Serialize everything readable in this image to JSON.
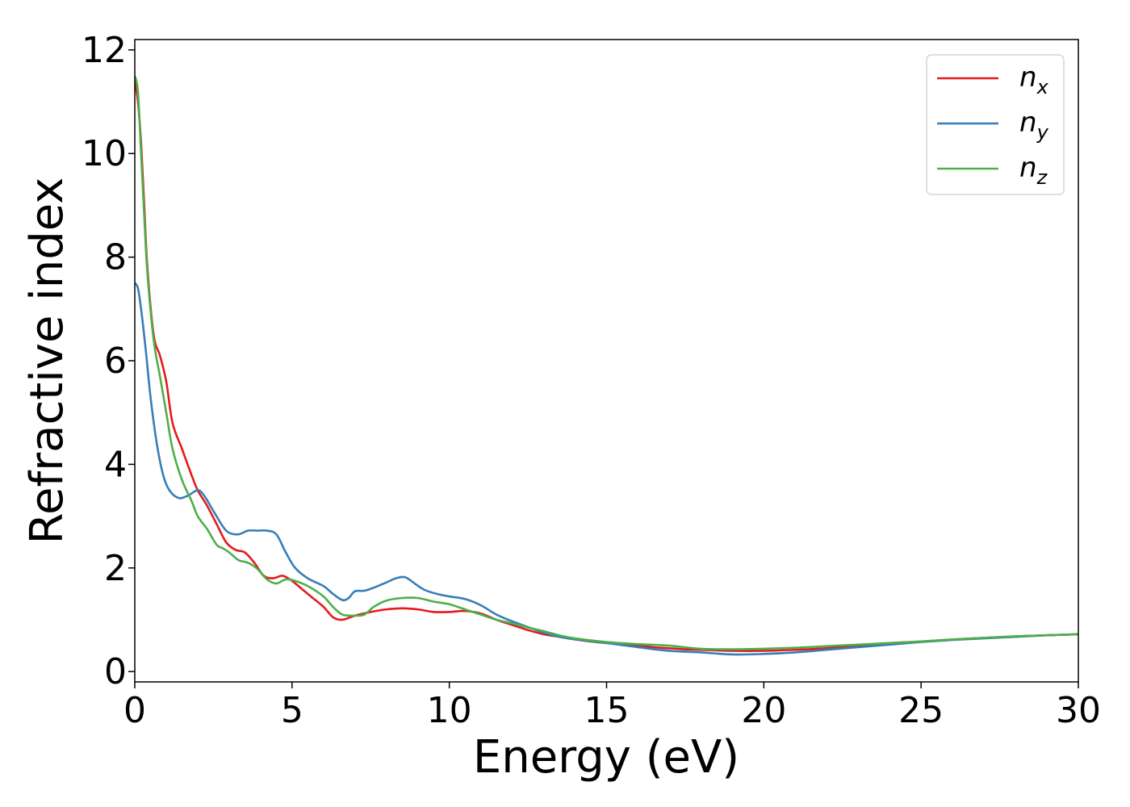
{
  "chart_data": {
    "type": "line",
    "xlabel": "Energy (eV)",
    "ylabel": "Refractive index",
    "xlim": [
      0,
      30
    ],
    "ylim": [
      -0.2,
      12.2
    ],
    "xticks": [
      0,
      5,
      10,
      15,
      20,
      25,
      30
    ],
    "yticks": [
      0,
      2,
      4,
      6,
      8,
      10,
      12
    ],
    "grid": false,
    "legend_position": "top-right",
    "series": [
      {
        "name": "n",
        "subscript": "x",
        "color": "#e41a1c",
        "x": [
          0.0,
          0.1,
          0.2,
          0.3,
          0.4,
          0.6,
          0.8,
          1.0,
          1.2,
          1.5,
          1.8,
          2.0,
          2.3,
          2.6,
          2.9,
          3.2,
          3.5,
          3.8,
          4.1,
          4.4,
          4.7,
          5.0,
          5.3,
          5.6,
          6.0,
          6.3,
          6.6,
          7.0,
          7.5,
          8.0,
          8.5,
          9.0,
          9.5,
          10.0,
          10.5,
          11.0,
          11.5,
          12.0,
          12.5,
          13.0,
          13.5,
          14.0,
          14.5,
          15.0,
          15.5,
          16.0,
          16.5,
          17.0,
          17.5,
          18.0,
          19.0,
          20.0,
          21.0,
          22.0,
          23.0,
          24.0,
          25.0,
          26.0,
          27.0,
          28.0,
          29.0,
          30.0
        ],
        "values": [
          11.4,
          11.0,
          10.2,
          9.0,
          7.8,
          6.5,
          6.1,
          5.6,
          4.8,
          4.3,
          3.8,
          3.5,
          3.2,
          2.85,
          2.5,
          2.35,
          2.3,
          2.1,
          1.85,
          1.8,
          1.85,
          1.75,
          1.6,
          1.45,
          1.25,
          1.05,
          1.0,
          1.08,
          1.15,
          1.2,
          1.22,
          1.2,
          1.15,
          1.15,
          1.17,
          1.12,
          1.0,
          0.9,
          0.8,
          0.72,
          0.67,
          0.62,
          0.58,
          0.55,
          0.53,
          0.5,
          0.47,
          0.45,
          0.43,
          0.42,
          0.4,
          0.4,
          0.42,
          0.45,
          0.5,
          0.55,
          0.58,
          0.62,
          0.65,
          0.68,
          0.7,
          0.72
        ]
      },
      {
        "name": "n",
        "subscript": "y",
        "color": "#377eb8",
        "x": [
          0.0,
          0.1,
          0.2,
          0.35,
          0.5,
          0.7,
          0.9,
          1.1,
          1.4,
          1.7,
          2.0,
          2.2,
          2.5,
          2.8,
          3.0,
          3.3,
          3.6,
          3.9,
          4.2,
          4.5,
          4.8,
          5.1,
          5.5,
          6.0,
          6.3,
          6.6,
          6.8,
          7.0,
          7.3,
          7.6,
          8.0,
          8.3,
          8.6,
          8.9,
          9.2,
          9.6,
          10.0,
          10.5,
          11.0,
          11.5,
          12.0,
          12.5,
          13.0,
          13.5,
          14.0,
          15.0,
          16.0,
          17.0,
          18.0,
          19.0,
          20.0,
          21.0,
          22.0,
          23.0,
          24.0,
          25.0,
          26.0,
          27.0,
          28.0,
          29.0,
          30.0
        ],
        "values": [
          7.5,
          7.4,
          7.0,
          6.2,
          5.3,
          4.4,
          3.8,
          3.5,
          3.35,
          3.4,
          3.5,
          3.4,
          3.1,
          2.8,
          2.68,
          2.65,
          2.72,
          2.72,
          2.72,
          2.65,
          2.3,
          2.0,
          1.8,
          1.65,
          1.5,
          1.38,
          1.42,
          1.55,
          1.56,
          1.62,
          1.72,
          1.8,
          1.82,
          1.7,
          1.58,
          1.5,
          1.45,
          1.4,
          1.28,
          1.1,
          0.97,
          0.86,
          0.75,
          0.67,
          0.62,
          0.55,
          0.47,
          0.4,
          0.37,
          0.33,
          0.34,
          0.37,
          0.42,
          0.47,
          0.52,
          0.57,
          0.61,
          0.64,
          0.67,
          0.7,
          0.72
        ]
      },
      {
        "name": "n",
        "subscript": "z",
        "color": "#4daf4a",
        "x": [
          0.0,
          0.1,
          0.2,
          0.3,
          0.4,
          0.6,
          0.8,
          1.0,
          1.2,
          1.5,
          1.8,
          2.0,
          2.3,
          2.6,
          2.8,
          3.0,
          3.3,
          3.6,
          3.9,
          4.2,
          4.5,
          4.8,
          5.1,
          5.5,
          6.0,
          6.3,
          6.6,
          7.0,
          7.3,
          7.6,
          8.0,
          8.5,
          9.0,
          9.5,
          10.0,
          10.5,
          11.0,
          11.5,
          12.0,
          12.5,
          13.0,
          13.5,
          14.0,
          15.0,
          16.0,
          17.0,
          18.0,
          19.0,
          20.0,
          21.0,
          22.0,
          23.0,
          24.0,
          25.0,
          26.0,
          27.0,
          28.0,
          29.0,
          30.0
        ],
        "values": [
          11.5,
          11.2,
          10.0,
          8.8,
          7.7,
          6.4,
          5.7,
          5.0,
          4.3,
          3.7,
          3.3,
          3.0,
          2.75,
          2.45,
          2.38,
          2.3,
          2.15,
          2.1,
          1.98,
          1.78,
          1.7,
          1.78,
          1.75,
          1.65,
          1.45,
          1.25,
          1.1,
          1.08,
          1.1,
          1.25,
          1.37,
          1.42,
          1.42,
          1.35,
          1.3,
          1.2,
          1.1,
          1.0,
          0.93,
          0.85,
          0.78,
          0.7,
          0.64,
          0.57,
          0.53,
          0.5,
          0.44,
          0.43,
          0.44,
          0.46,
          0.49,
          0.52,
          0.55,
          0.58,
          0.62,
          0.65,
          0.68,
          0.7,
          0.72
        ]
      }
    ]
  }
}
